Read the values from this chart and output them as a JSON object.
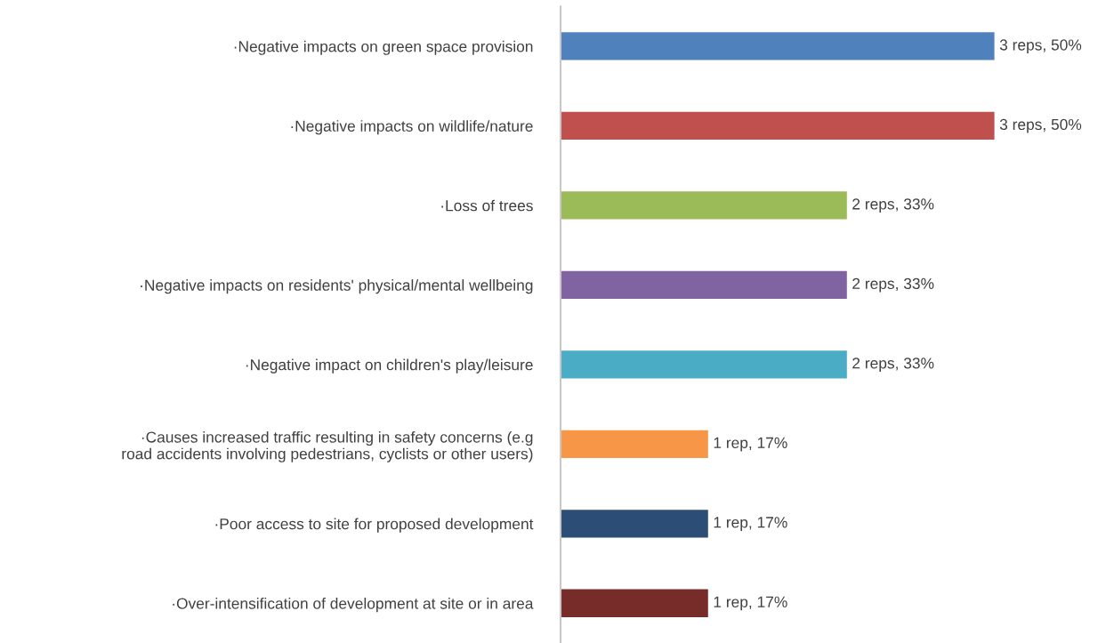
{
  "chart_data": {
    "type": "bar",
    "orientation": "horizontal",
    "tick_labels": "y",
    "categories": [
      "·Negative impacts on green space provision",
      "·Negative impacts on wildlife/nature",
      "·Loss of trees",
      "·Negative impacts on residents' physical/mental wellbeing",
      "·Negative impact on children's play/leisure",
      "·Causes increased traffic resulting in safety concerns (e.g\nroad accidents involving pedestrians, cyclists or other users)",
      "·Poor access to site for proposed development",
      "·Over-intensification of development at site or in area"
    ],
    "values": [
      50,
      50,
      33,
      33,
      33,
      17,
      17,
      17
    ],
    "colors": [
      "#4f81bd",
      "#c0504d",
      "#9bbb59",
      "#8064a2",
      "#4bacc6",
      "#f79646",
      "#2c4d75",
      "#772c2a"
    ],
    "value_labels": [
      "3 reps, 50%",
      "3 reps, 50%",
      "2 reps, 33%",
      "2 reps, 33%",
      "2 reps, 33%",
      "1 rep, 17%",
      "1 rep, 17%",
      "1 rep, 17%"
    ],
    "grid": false,
    "legend": false
  }
}
